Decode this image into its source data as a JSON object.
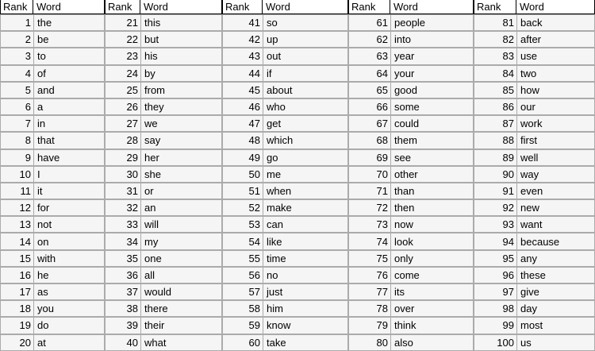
{
  "table": {
    "header": {
      "rank_label": "Rank",
      "word_label": "Word"
    },
    "groups": [
      {
        "rows": [
          {
            "rank": 1,
            "word": "the"
          },
          {
            "rank": 2,
            "word": "be"
          },
          {
            "rank": 3,
            "word": "to"
          },
          {
            "rank": 4,
            "word": "of"
          },
          {
            "rank": 5,
            "word": "and"
          },
          {
            "rank": 6,
            "word": "a"
          },
          {
            "rank": 7,
            "word": "in"
          },
          {
            "rank": 8,
            "word": "that"
          },
          {
            "rank": 9,
            "word": "have"
          },
          {
            "rank": 10,
            "word": "I"
          },
          {
            "rank": 11,
            "word": "it"
          },
          {
            "rank": 12,
            "word": "for"
          },
          {
            "rank": 13,
            "word": "not"
          },
          {
            "rank": 14,
            "word": "on"
          },
          {
            "rank": 15,
            "word": "with"
          },
          {
            "rank": 16,
            "word": "he"
          },
          {
            "rank": 17,
            "word": "as"
          },
          {
            "rank": 18,
            "word": "you"
          },
          {
            "rank": 19,
            "word": "do"
          },
          {
            "rank": 20,
            "word": "at"
          }
        ]
      },
      {
        "rows": [
          {
            "rank": 21,
            "word": "this"
          },
          {
            "rank": 22,
            "word": "but"
          },
          {
            "rank": 23,
            "word": "his"
          },
          {
            "rank": 24,
            "word": "by"
          },
          {
            "rank": 25,
            "word": "from"
          },
          {
            "rank": 26,
            "word": "they"
          },
          {
            "rank": 27,
            "word": "we"
          },
          {
            "rank": 28,
            "word": "say"
          },
          {
            "rank": 29,
            "word": "her"
          },
          {
            "rank": 30,
            "word": "she"
          },
          {
            "rank": 31,
            "word": "or"
          },
          {
            "rank": 32,
            "word": "an"
          },
          {
            "rank": 33,
            "word": "will"
          },
          {
            "rank": 34,
            "word": "my"
          },
          {
            "rank": 35,
            "word": "one"
          },
          {
            "rank": 36,
            "word": "all"
          },
          {
            "rank": 37,
            "word": "would"
          },
          {
            "rank": 38,
            "word": "there"
          },
          {
            "rank": 39,
            "word": "their"
          },
          {
            "rank": 40,
            "word": "what"
          }
        ]
      },
      {
        "rows": [
          {
            "rank": 41,
            "word": "so"
          },
          {
            "rank": 42,
            "word": "up"
          },
          {
            "rank": 43,
            "word": "out"
          },
          {
            "rank": 44,
            "word": "if"
          },
          {
            "rank": 45,
            "word": "about"
          },
          {
            "rank": 46,
            "word": "who"
          },
          {
            "rank": 47,
            "word": "get"
          },
          {
            "rank": 48,
            "word": "which"
          },
          {
            "rank": 49,
            "word": "go"
          },
          {
            "rank": 50,
            "word": "me"
          },
          {
            "rank": 51,
            "word": "when"
          },
          {
            "rank": 52,
            "word": "make"
          },
          {
            "rank": 53,
            "word": "can"
          },
          {
            "rank": 54,
            "word": "like"
          },
          {
            "rank": 55,
            "word": "time"
          },
          {
            "rank": 56,
            "word": "no"
          },
          {
            "rank": 57,
            "word": "just"
          },
          {
            "rank": 58,
            "word": "him"
          },
          {
            "rank": 59,
            "word": "know"
          },
          {
            "rank": 60,
            "word": "take"
          }
        ]
      },
      {
        "rows": [
          {
            "rank": 61,
            "word": "people"
          },
          {
            "rank": 62,
            "word": "into"
          },
          {
            "rank": 63,
            "word": "year"
          },
          {
            "rank": 64,
            "word": "your"
          },
          {
            "rank": 65,
            "word": "good"
          },
          {
            "rank": 66,
            "word": "some"
          },
          {
            "rank": 67,
            "word": "could"
          },
          {
            "rank": 68,
            "word": "them"
          },
          {
            "rank": 69,
            "word": "see"
          },
          {
            "rank": 70,
            "word": "other"
          },
          {
            "rank": 71,
            "word": "than"
          },
          {
            "rank": 72,
            "word": "then"
          },
          {
            "rank": 73,
            "word": "now"
          },
          {
            "rank": 74,
            "word": "look"
          },
          {
            "rank": 75,
            "word": "only"
          },
          {
            "rank": 76,
            "word": "come"
          },
          {
            "rank": 77,
            "word": "its"
          },
          {
            "rank": 78,
            "word": "over"
          },
          {
            "rank": 79,
            "word": "think"
          },
          {
            "rank": 80,
            "word": "also"
          }
        ]
      },
      {
        "rows": [
          {
            "rank": 81,
            "word": "back"
          },
          {
            "rank": 82,
            "word": "after"
          },
          {
            "rank": 83,
            "word": "use"
          },
          {
            "rank": 84,
            "word": "two"
          },
          {
            "rank": 85,
            "word": "how"
          },
          {
            "rank": 86,
            "word": "our"
          },
          {
            "rank": 87,
            "word": "work"
          },
          {
            "rank": 88,
            "word": "first"
          },
          {
            "rank": 89,
            "word": "well"
          },
          {
            "rank": 90,
            "word": "way"
          },
          {
            "rank": 91,
            "word": "even"
          },
          {
            "rank": 92,
            "word": "new"
          },
          {
            "rank": 93,
            "word": "want"
          },
          {
            "rank": 94,
            "word": "because"
          },
          {
            "rank": 95,
            "word": "any"
          },
          {
            "rank": 96,
            "word": "these"
          },
          {
            "rank": 97,
            "word": "give"
          },
          {
            "rank": 98,
            "word": "day"
          },
          {
            "rank": 99,
            "word": "most"
          },
          {
            "rank": 100,
            "word": "us"
          }
        ]
      }
    ]
  },
  "colors": {
    "header_background": "#ffffff",
    "header_rule": "#000000",
    "cell_background": "#f5f5f5",
    "cell_border": "#ababab",
    "text": "#000000"
  }
}
